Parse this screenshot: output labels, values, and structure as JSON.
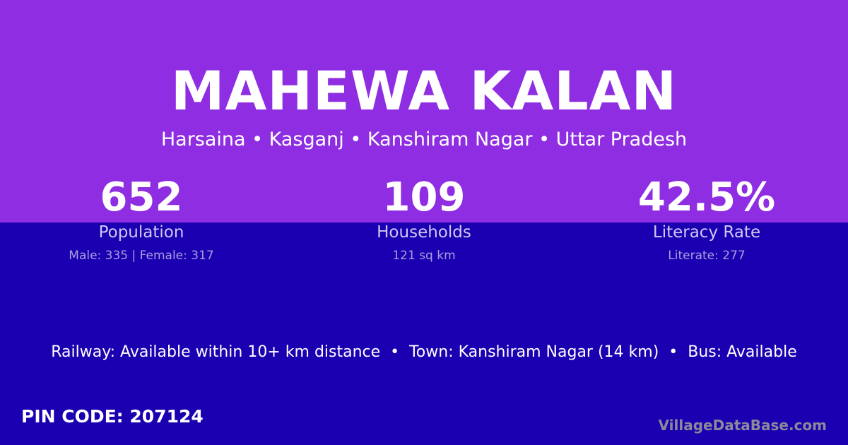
{
  "colors": {
    "top": "#8e2de2",
    "bottom": "#1a00b0"
  },
  "title": "MAHEWA KALAN",
  "subtitle": "Harsaina • Kasganj • Kanshiram Nagar • Uttar Pradesh",
  "stats": [
    {
      "value": "652",
      "label": "Population",
      "detail": "Male: 335 | Female: 317"
    },
    {
      "value": "109",
      "label": "Households",
      "detail": "121 sq km"
    },
    {
      "value": "42.5%",
      "label": "Literacy Rate",
      "detail": "Literate: 277"
    }
  ],
  "info": "Railway: Available within 10+ km distance  •  Town: Kanshiram Nagar (14 km)  •  Bus: Available",
  "pin": "PIN CODE: 207124",
  "brand": "VillageDataBase.com"
}
